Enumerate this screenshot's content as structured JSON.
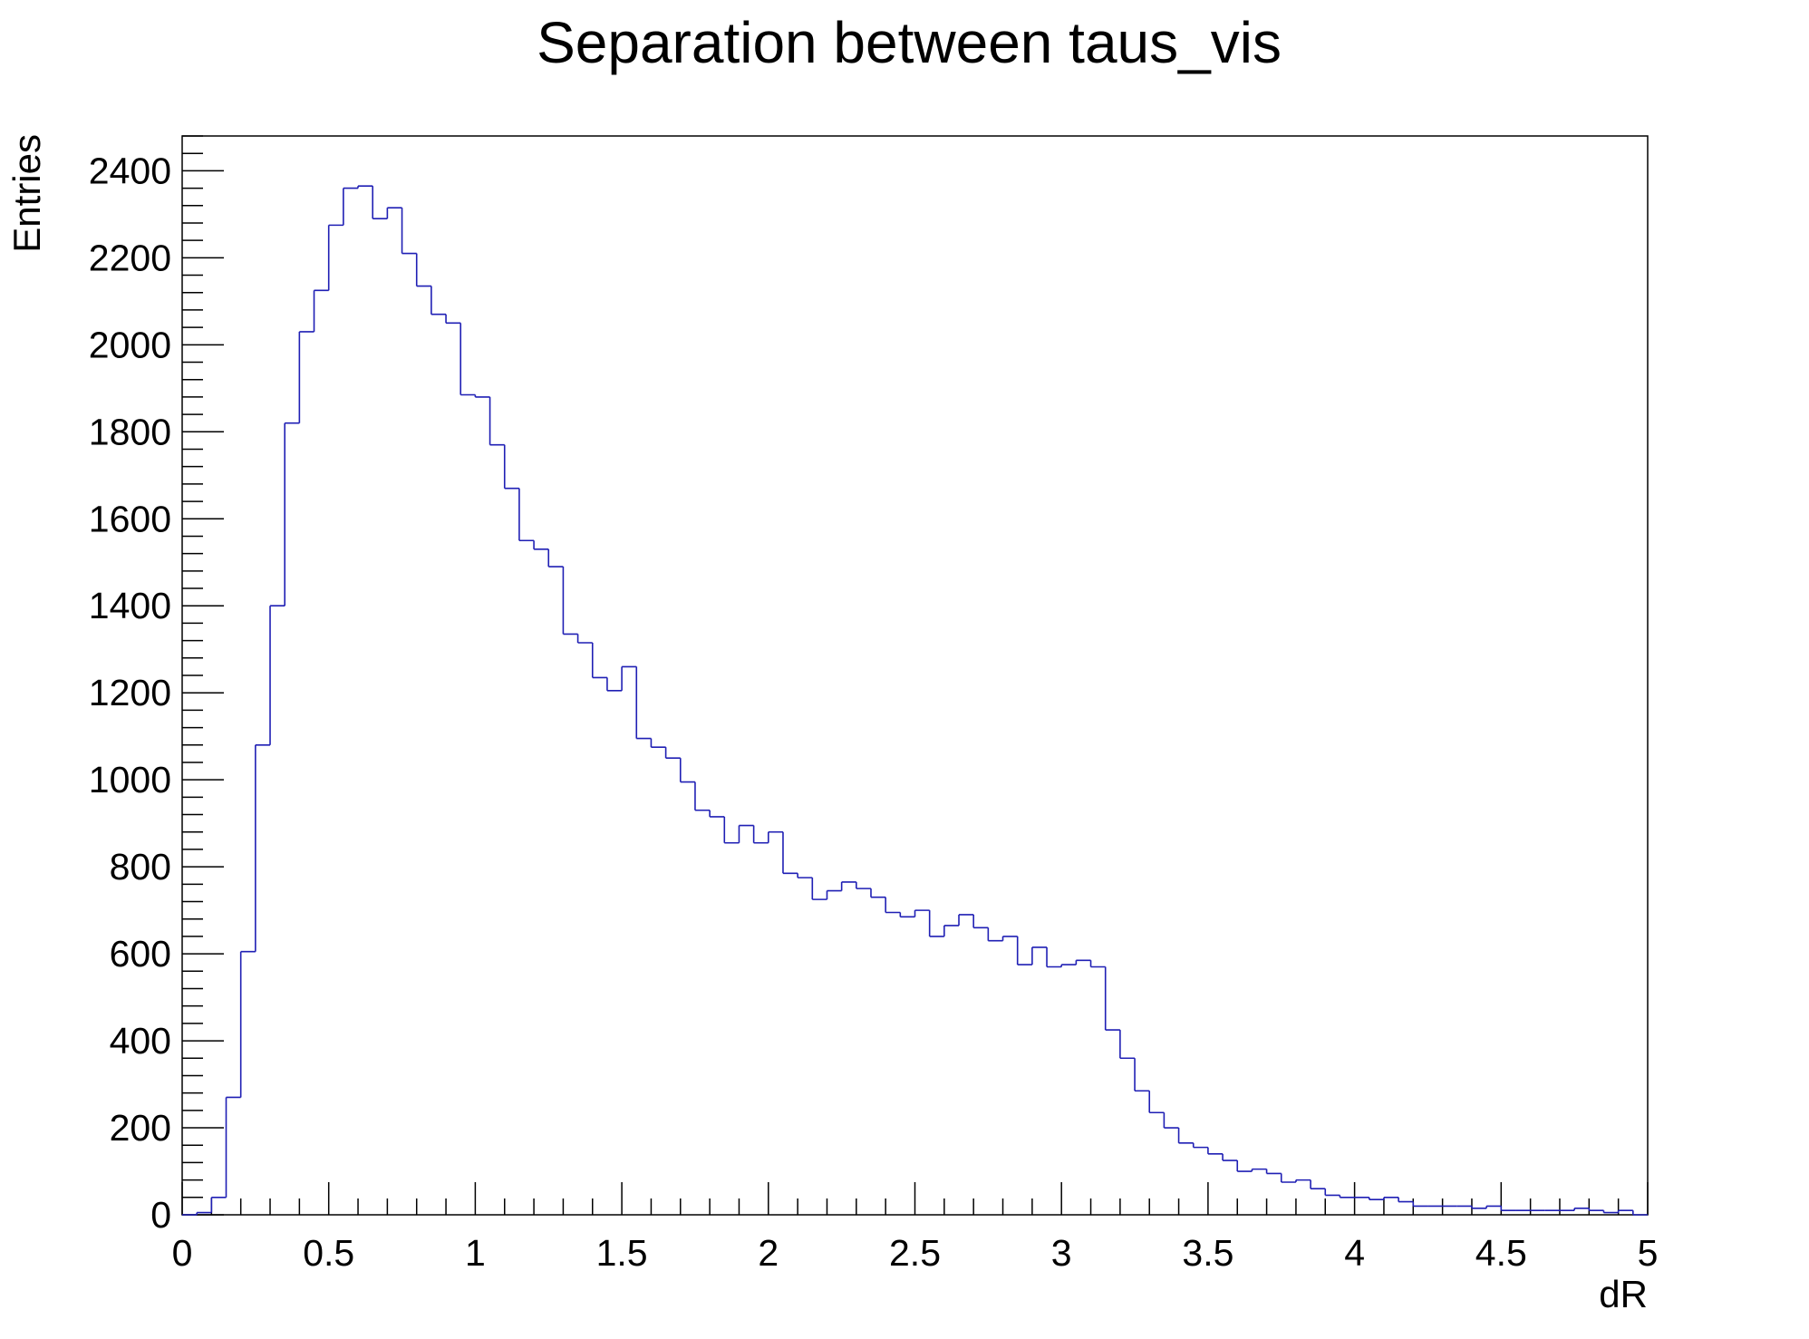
{
  "chart_data": {
    "type": "bar",
    "style": "step-histogram",
    "title": "Separation between taus_vis",
    "xlabel": "dR",
    "ylabel": "Entries",
    "xlim": [
      0,
      5
    ],
    "ylim": [
      0,
      2480
    ],
    "grid": false,
    "legend": "none",
    "line_color": "#1f1fb4",
    "bin_width": 0.05,
    "x_ticks": [
      {
        "value": 0,
        "label": "0"
      },
      {
        "value": 0.5,
        "label": "0.5"
      },
      {
        "value": 1,
        "label": "1"
      },
      {
        "value": 1.5,
        "label": "1.5"
      },
      {
        "value": 2,
        "label": "2"
      },
      {
        "value": 2.5,
        "label": "2.5"
      },
      {
        "value": 3,
        "label": "3"
      },
      {
        "value": 3.5,
        "label": "3.5"
      },
      {
        "value": 4,
        "label": "4"
      },
      {
        "value": 4.5,
        "label": "4.5"
      },
      {
        "value": 5,
        "label": "5"
      }
    ],
    "y_ticks": [
      {
        "value": 0,
        "label": "0"
      },
      {
        "value": 200,
        "label": "200"
      },
      {
        "value": 400,
        "label": "400"
      },
      {
        "value": 600,
        "label": "600"
      },
      {
        "value": 800,
        "label": "800"
      },
      {
        "value": 1000,
        "label": "1000"
      },
      {
        "value": 1200,
        "label": "1200"
      },
      {
        "value": 1400,
        "label": "1400"
      },
      {
        "value": 1600,
        "label": "1600"
      },
      {
        "value": 1800,
        "label": "1800"
      },
      {
        "value": 2000,
        "label": "2000"
      },
      {
        "value": 2200,
        "label": "2200"
      },
      {
        "value": 2400,
        "label": "2400"
      }
    ],
    "values": [
      0,
      5,
      40,
      270,
      605,
      1080,
      1400,
      1820,
      2030,
      2125,
      2275,
      2360,
      2365,
      2290,
      2315,
      2210,
      2135,
      2070,
      2050,
      1885,
      1880,
      1770,
      1670,
      1550,
      1530,
      1490,
      1335,
      1315,
      1235,
      1205,
      1260,
      1095,
      1075,
      1050,
      995,
      930,
      915,
      855,
      895,
      855,
      880,
      785,
      775,
      725,
      745,
      765,
      750,
      730,
      695,
      685,
      700,
      640,
      665,
      690,
      660,
      630,
      640,
      575,
      615,
      570,
      575,
      585,
      570,
      425,
      360,
      285,
      235,
      200,
      165,
      155,
      140,
      125,
      100,
      105,
      95,
      75,
      80,
      60,
      45,
      40,
      40,
      35,
      40,
      30,
      20,
      20,
      20,
      20,
      15,
      20,
      10,
      10,
      10,
      10,
      10,
      15,
      10,
      5,
      10,
      0
    ]
  }
}
